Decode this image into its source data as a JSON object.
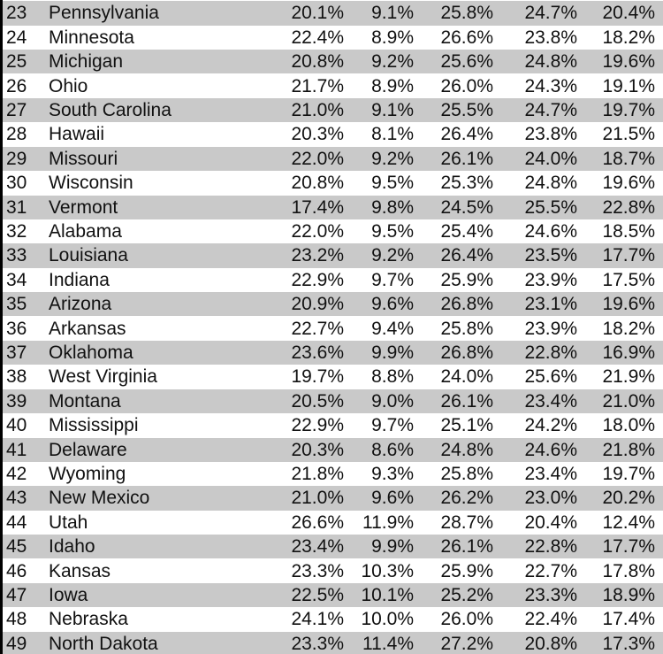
{
  "table": {
    "rows": [
      [
        23,
        "Pennsylvania",
        "20.1%",
        "9.1%",
        "25.8%",
        "24.7%",
        "20.4%"
      ],
      [
        24,
        "Minnesota",
        "22.4%",
        "8.9%",
        "26.6%",
        "23.8%",
        "18.2%"
      ],
      [
        25,
        "Michigan",
        "20.8%",
        "9.2%",
        "25.6%",
        "24.8%",
        "19.6%"
      ],
      [
        26,
        "Ohio",
        "21.7%",
        "8.9%",
        "26.0%",
        "24.3%",
        "19.1%"
      ],
      [
        27,
        "South Carolina",
        "21.0%",
        "9.1%",
        "25.5%",
        "24.7%",
        "19.7%"
      ],
      [
        28,
        "Hawaii",
        "20.3%",
        "8.1%",
        "26.4%",
        "23.8%",
        "21.5%"
      ],
      [
        29,
        "Missouri",
        "22.0%",
        "9.2%",
        "26.1%",
        "24.0%",
        "18.7%"
      ],
      [
        30,
        "Wisconsin",
        "20.8%",
        "9.5%",
        "25.3%",
        "24.8%",
        "19.6%"
      ],
      [
        31,
        "Vermont",
        "17.4%",
        "9.8%",
        "24.5%",
        "25.5%",
        "22.8%"
      ],
      [
        32,
        "Alabama",
        "22.0%",
        "9.5%",
        "25.4%",
        "24.6%",
        "18.5%"
      ],
      [
        33,
        "Louisiana",
        "23.2%",
        "9.2%",
        "26.4%",
        "23.5%",
        "17.7%"
      ],
      [
        34,
        "Indiana",
        "22.9%",
        "9.7%",
        "25.9%",
        "23.9%",
        "17.5%"
      ],
      [
        35,
        "Arizona",
        "20.9%",
        "9.6%",
        "26.8%",
        "23.1%",
        "19.6%"
      ],
      [
        36,
        "Arkansas",
        "22.7%",
        "9.4%",
        "25.8%",
        "23.9%",
        "18.2%"
      ],
      [
        37,
        "Oklahoma",
        "23.6%",
        "9.9%",
        "26.8%",
        "22.8%",
        "16.9%"
      ],
      [
        38,
        "West Virginia",
        "19.7%",
        "8.8%",
        "24.0%",
        "25.6%",
        "21.9%"
      ],
      [
        39,
        "Montana",
        "20.5%",
        "9.0%",
        "26.1%",
        "23.4%",
        "21.0%"
      ],
      [
        40,
        "Mississippi",
        "22.9%",
        "9.7%",
        "25.1%",
        "24.2%",
        "18.0%"
      ],
      [
        41,
        "Delaware",
        "20.3%",
        "8.6%",
        "24.8%",
        "24.6%",
        "21.8%"
      ],
      [
        42,
        "Wyoming",
        "21.8%",
        "9.3%",
        "25.8%",
        "23.4%",
        "19.7%"
      ],
      [
        43,
        "New Mexico",
        "21.0%",
        "9.6%",
        "26.2%",
        "23.0%",
        "20.2%"
      ],
      [
        44,
        "Utah",
        "26.6%",
        "11.9%",
        "28.7%",
        "20.4%",
        "12.4%"
      ],
      [
        45,
        "Idaho",
        "23.4%",
        "9.9%",
        "26.1%",
        "22.8%",
        "17.7%"
      ],
      [
        46,
        "Kansas",
        "23.3%",
        "10.3%",
        "25.9%",
        "22.7%",
        "17.8%"
      ],
      [
        47,
        "Iowa",
        "22.5%",
        "10.1%",
        "25.2%",
        "23.3%",
        "18.9%"
      ],
      [
        48,
        "Nebraska",
        "24.1%",
        "10.0%",
        "26.0%",
        "22.4%",
        "17.4%"
      ],
      [
        49,
        "North Dakota",
        "23.3%",
        "11.4%",
        "27.2%",
        "20.8%",
        "17.3%"
      ]
    ]
  }
}
